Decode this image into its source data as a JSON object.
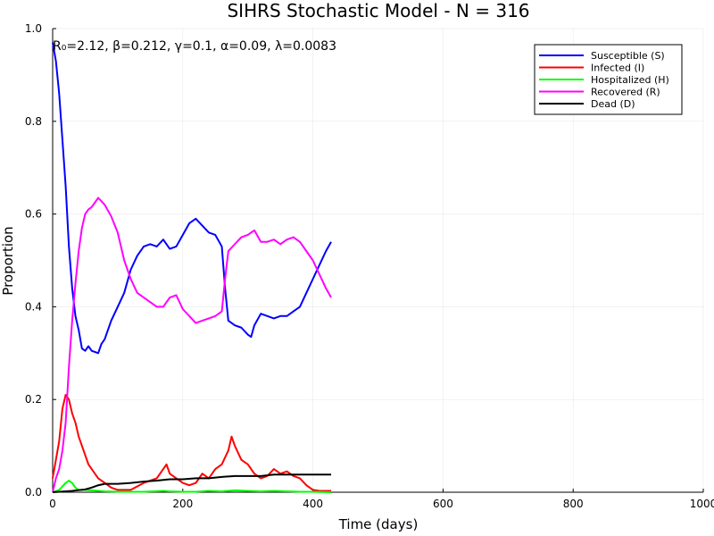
{
  "chart_data": {
    "type": "line",
    "title": "SIHRS Stochastic Model - N = 316",
    "xlabel": "Time (days)",
    "ylabel": "Proportion",
    "annotation": "R₀=2.12, β=0.212, γ=0.1, α=0.09, λ=0.0083",
    "xlim": [
      0,
      1000
    ],
    "ylim": [
      0,
      1
    ],
    "xticks": [
      0,
      200,
      400,
      600,
      800,
      1000
    ],
    "yticks": [
      0.0,
      0.2,
      0.4,
      0.6,
      0.8,
      1.0
    ],
    "xtick_labels": [
      "0",
      "200",
      "400",
      "600",
      "800",
      "1000"
    ],
    "ytick_labels": [
      "0.0",
      "0.2",
      "0.4",
      "0.6",
      "0.8",
      "1.0"
    ],
    "grid": true,
    "legend_position": "top-right",
    "series": [
      {
        "name": "Susceptible (S)",
        "color": "#0000ff",
        "points": [
          [
            0,
            0.97
          ],
          [
            5,
            0.93
          ],
          [
            10,
            0.86
          ],
          [
            15,
            0.76
          ],
          [
            20,
            0.66
          ],
          [
            25,
            0.53
          ],
          [
            30,
            0.44
          ],
          [
            35,
            0.38
          ],
          [
            40,
            0.35
          ],
          [
            45,
            0.31
          ],
          [
            50,
            0.305
          ],
          [
            55,
            0.315
          ],
          [
            60,
            0.305
          ],
          [
            70,
            0.3
          ],
          [
            75,
            0.32
          ],
          [
            80,
            0.33
          ],
          [
            90,
            0.37
          ],
          [
            100,
            0.4
          ],
          [
            110,
            0.43
          ],
          [
            120,
            0.48
          ],
          [
            130,
            0.51
          ],
          [
            140,
            0.53
          ],
          [
            150,
            0.535
          ],
          [
            160,
            0.53
          ],
          [
            170,
            0.545
          ],
          [
            180,
            0.525
          ],
          [
            190,
            0.53
          ],
          [
            200,
            0.555
          ],
          [
            210,
            0.58
          ],
          [
            220,
            0.59
          ],
          [
            230,
            0.575
          ],
          [
            240,
            0.56
          ],
          [
            250,
            0.555
          ],
          [
            260,
            0.53
          ],
          [
            265,
            0.44
          ],
          [
            270,
            0.37
          ],
          [
            280,
            0.36
          ],
          [
            290,
            0.355
          ],
          [
            300,
            0.34
          ],
          [
            305,
            0.335
          ],
          [
            310,
            0.36
          ],
          [
            320,
            0.385
          ],
          [
            330,
            0.38
          ],
          [
            340,
            0.375
          ],
          [
            350,
            0.38
          ],
          [
            360,
            0.38
          ],
          [
            370,
            0.39
          ],
          [
            380,
            0.4
          ],
          [
            390,
            0.43
          ],
          [
            400,
            0.46
          ],
          [
            410,
            0.49
          ],
          [
            420,
            0.52
          ],
          [
            428,
            0.54
          ]
        ]
      },
      {
        "name": "Infected (I)",
        "color": "#ff0000",
        "points": [
          [
            0,
            0.03
          ],
          [
            5,
            0.07
          ],
          [
            10,
            0.11
          ],
          [
            15,
            0.18
          ],
          [
            20,
            0.21
          ],
          [
            25,
            0.2
          ],
          [
            30,
            0.17
          ],
          [
            35,
            0.15
          ],
          [
            40,
            0.12
          ],
          [
            45,
            0.1
          ],
          [
            50,
            0.08
          ],
          [
            55,
            0.06
          ],
          [
            60,
            0.05
          ],
          [
            70,
            0.03
          ],
          [
            80,
            0.02
          ],
          [
            90,
            0.01
          ],
          [
            100,
            0.005
          ],
          [
            120,
            0.005
          ],
          [
            140,
            0.02
          ],
          [
            160,
            0.03
          ],
          [
            170,
            0.05
          ],
          [
            175,
            0.06
          ],
          [
            180,
            0.04
          ],
          [
            190,
            0.03
          ],
          [
            200,
            0.02
          ],
          [
            210,
            0.015
          ],
          [
            220,
            0.02
          ],
          [
            230,
            0.04
          ],
          [
            240,
            0.03
          ],
          [
            250,
            0.05
          ],
          [
            260,
            0.06
          ],
          [
            270,
            0.09
          ],
          [
            275,
            0.12
          ],
          [
            280,
            0.1
          ],
          [
            290,
            0.07
          ],
          [
            300,
            0.06
          ],
          [
            310,
            0.04
          ],
          [
            320,
            0.03
          ],
          [
            330,
            0.035
          ],
          [
            340,
            0.05
          ],
          [
            350,
            0.04
          ],
          [
            360,
            0.045
          ],
          [
            370,
            0.035
          ],
          [
            380,
            0.03
          ],
          [
            390,
            0.015
          ],
          [
            400,
            0.005
          ],
          [
            410,
            0.003
          ],
          [
            428,
            0.003
          ]
        ]
      },
      {
        "name": "Hospitalized (H)",
        "color": "#00ff00",
        "points": [
          [
            0,
            0.0
          ],
          [
            10,
            0.005
          ],
          [
            20,
            0.02
          ],
          [
            25,
            0.025
          ],
          [
            30,
            0.02
          ],
          [
            35,
            0.01
          ],
          [
            40,
            0.005
          ],
          [
            50,
            0.005
          ],
          [
            60,
            0.004
          ],
          [
            80,
            0.002
          ],
          [
            100,
            0.001
          ],
          [
            140,
            0.001
          ],
          [
            170,
            0.003
          ],
          [
            180,
            0.002
          ],
          [
            200,
            0.001
          ],
          [
            220,
            0.001
          ],
          [
            240,
            0.003
          ],
          [
            260,
            0.002
          ],
          [
            280,
            0.004
          ],
          [
            300,
            0.003
          ],
          [
            320,
            0.002
          ],
          [
            340,
            0.003
          ],
          [
            360,
            0.002
          ],
          [
            380,
            0.001
          ],
          [
            400,
            0.001
          ],
          [
            428,
            0.0
          ]
        ]
      },
      {
        "name": "Recovered (R)",
        "color": "#ff00ff",
        "points": [
          [
            0,
            0.0
          ],
          [
            5,
            0.03
          ],
          [
            10,
            0.05
          ],
          [
            15,
            0.09
          ],
          [
            20,
            0.15
          ],
          [
            25,
            0.27
          ],
          [
            30,
            0.37
          ],
          [
            35,
            0.45
          ],
          [
            40,
            0.52
          ],
          [
            45,
            0.57
          ],
          [
            50,
            0.6
          ],
          [
            55,
            0.61
          ],
          [
            60,
            0.615
          ],
          [
            65,
            0.625
          ],
          [
            70,
            0.635
          ],
          [
            80,
            0.62
          ],
          [
            90,
            0.595
          ],
          [
            100,
            0.56
          ],
          [
            110,
            0.5
          ],
          [
            120,
            0.46
          ],
          [
            130,
            0.43
          ],
          [
            140,
            0.42
          ],
          [
            150,
            0.41
          ],
          [
            160,
            0.4
          ],
          [
            170,
            0.4
          ],
          [
            180,
            0.42
          ],
          [
            190,
            0.425
          ],
          [
            200,
            0.395
          ],
          [
            210,
            0.38
          ],
          [
            220,
            0.365
          ],
          [
            230,
            0.37
          ],
          [
            240,
            0.375
          ],
          [
            250,
            0.38
          ],
          [
            260,
            0.39
          ],
          [
            265,
            0.46
          ],
          [
            270,
            0.52
          ],
          [
            280,
            0.535
          ],
          [
            290,
            0.55
          ],
          [
            300,
            0.555
          ],
          [
            310,
            0.565
          ],
          [
            320,
            0.54
          ],
          [
            330,
            0.54
          ],
          [
            340,
            0.545
          ],
          [
            350,
            0.535
          ],
          [
            360,
            0.545
          ],
          [
            370,
            0.55
          ],
          [
            380,
            0.54
          ],
          [
            390,
            0.52
          ],
          [
            400,
            0.5
          ],
          [
            410,
            0.47
          ],
          [
            420,
            0.44
          ],
          [
            428,
            0.42
          ]
        ]
      },
      {
        "name": "Dead (D)",
        "color": "#000000",
        "points": [
          [
            0,
            0.0
          ],
          [
            30,
            0.003
          ],
          [
            50,
            0.006
          ],
          [
            60,
            0.01
          ],
          [
            70,
            0.015
          ],
          [
            80,
            0.018
          ],
          [
            100,
            0.018
          ],
          [
            120,
            0.02
          ],
          [
            140,
            0.023
          ],
          [
            160,
            0.025
          ],
          [
            180,
            0.028
          ],
          [
            200,
            0.028
          ],
          [
            220,
            0.03
          ],
          [
            240,
            0.03
          ],
          [
            260,
            0.033
          ],
          [
            280,
            0.035
          ],
          [
            300,
            0.035
          ],
          [
            320,
            0.035
          ],
          [
            340,
            0.038
          ],
          [
            360,
            0.038
          ],
          [
            380,
            0.038
          ],
          [
            400,
            0.038
          ],
          [
            428,
            0.038
          ]
        ]
      }
    ]
  }
}
